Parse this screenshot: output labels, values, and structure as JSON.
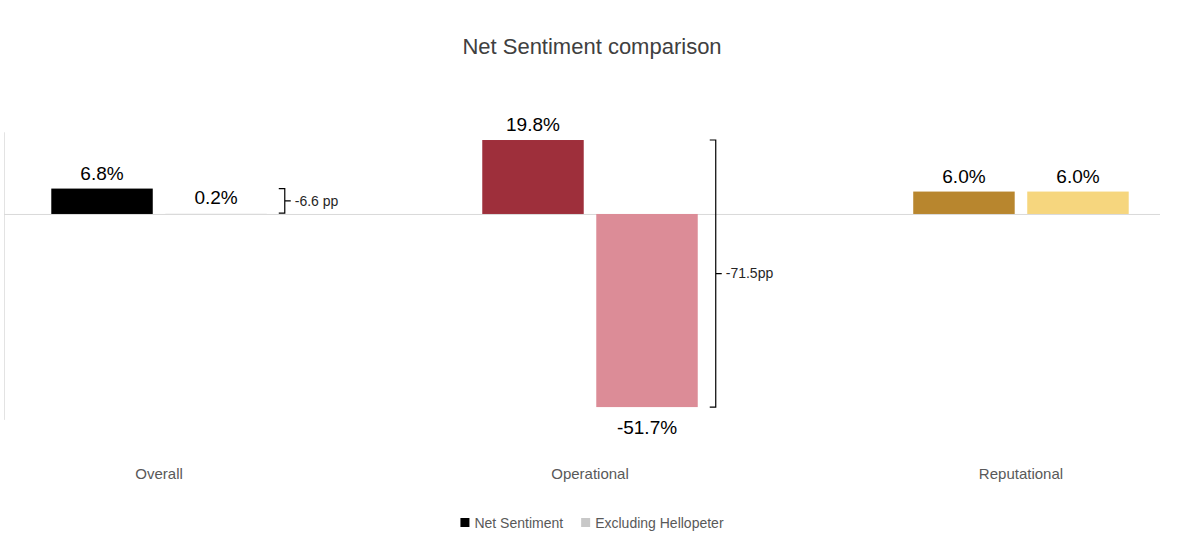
{
  "chart_data": {
    "type": "bar",
    "title": "Net Sentiment comparison",
    "categories": [
      "Overall",
      "Operational",
      "Reputational"
    ],
    "series": [
      {
        "name": "Net Sentiment",
        "color": "#000000",
        "colors": [
          "#000000",
          "#9e2f3b",
          "#b8862e"
        ],
        "values": [
          6.8,
          19.8,
          6.0
        ],
        "value_labels": [
          "6.8%",
          "19.8%",
          "6.0%"
        ]
      },
      {
        "name": "Excluding Hellopeter",
        "color": "#c8c8c8",
        "colors": [
          "#f2f2f2",
          "#dc8c97",
          "#f6d67e"
        ],
        "values": [
          0.2,
          -51.7,
          6.0
        ],
        "value_labels": [
          "0.2%",
          "-51.7%",
          "6.0%"
        ]
      }
    ],
    "annotations": [
      {
        "text": "-6.6 pp",
        "category": "Overall"
      },
      {
        "text": "-71.5pp",
        "category": "Operational"
      }
    ],
    "ylim": [
      -55,
      22
    ],
    "yticks": [
      0
    ],
    "grid": true,
    "data_labels": true,
    "tick_labels": "x",
    "legend": "bottom"
  }
}
